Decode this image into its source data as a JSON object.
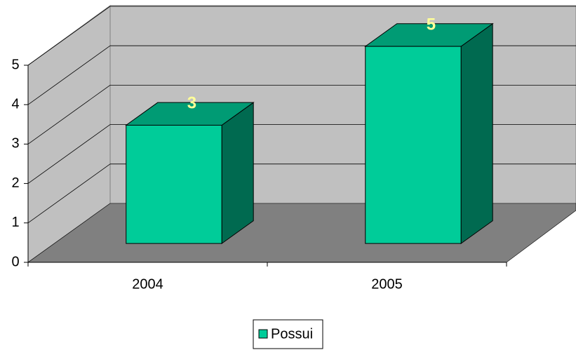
{
  "chart_data": {
    "type": "bar3d",
    "categories": [
      "2004",
      "2005"
    ],
    "series": [
      {
        "name": "Possui",
        "color": "#00cc99",
        "values": [
          3,
          5
        ]
      }
    ],
    "ylim": [
      0,
      5
    ],
    "yticks": [
      0,
      1,
      2,
      3,
      4,
      5
    ],
    "grid": true,
    "legend": "bottom"
  }
}
